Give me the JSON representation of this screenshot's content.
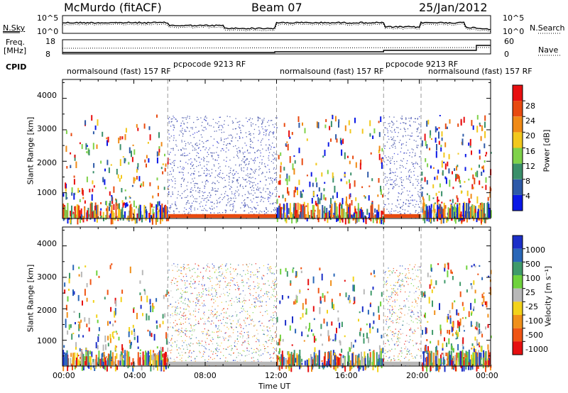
{
  "header": {
    "station": "McMurdo (fitACF)",
    "beam": "Beam 07",
    "date": "25/Jan/2012"
  },
  "noise_panel": {
    "left_label": "N.Sky",
    "right_label": "N.Search",
    "left_ticks": [
      "10^5",
      "10^0"
    ],
    "right_ticks": [
      "10^5",
      "10^0"
    ]
  },
  "freq_panel": {
    "left_label_line1": "Freq.",
    "left_label_line2": "[MHz]",
    "right_label": "Nave",
    "left_ticks": [
      "18",
      "8"
    ],
    "right_ticks": [
      "60",
      "0"
    ]
  },
  "cpid": {
    "label": "CPID",
    "segments": [
      {
        "text": "normalsound (fast)  157 RF",
        "start_h": 0,
        "end_h": 5.9
      },
      {
        "text": "pcpocode 9213 RF",
        "start_h": 5.9,
        "end_h": 12.0
      },
      {
        "text": "normalsound (fast)  157 RF",
        "start_h": 12.0,
        "end_h": 18.0
      },
      {
        "text": "pcpocode 9213 RF",
        "start_h": 18.0,
        "end_h": 20.1
      },
      {
        "text": "normalsound (fast)  157 RF",
        "start_h": 20.1,
        "end_h": 24.0
      }
    ]
  },
  "chart_data": [
    {
      "type": "heatmap",
      "panel": "power",
      "ylabel": "Slant Range [km]",
      "y_ticks": [
        "1000",
        "2000",
        "3000",
        "4000"
      ],
      "ylim": [
        180,
        4600
      ],
      "xlim_hours": [
        0,
        24
      ],
      "colorbar_label": "Power [dB]",
      "colorbar_ticks": [
        "4",
        "8",
        "12",
        "16",
        "20",
        "24",
        "28"
      ],
      "colors": [
        "#0a18e6",
        "#2e5aa8",
        "#3a8f6a",
        "#7fd24a",
        "#f2c81c",
        "#f08a16",
        "#e84a10",
        "#e80f10"
      ],
      "data_range": [
        0,
        30
      ]
    },
    {
      "type": "heatmap",
      "panel": "velocity",
      "ylabel": "Slant Range [km]",
      "y_ticks": [
        "1000",
        "2000",
        "3000",
        "4000"
      ],
      "ylim": [
        180,
        4600
      ],
      "xlim_hours": [
        0,
        24
      ],
      "xlabel": "Time UT",
      "x_ticks": [
        "00:00",
        "04:00",
        "08:00",
        "12:00",
        "16:00",
        "20:00",
        "00:00"
      ],
      "colorbar_label": "Velocity [m s⁻¹]",
      "colorbar_ticks": [
        "1000",
        "500",
        "100",
        "25",
        "-25",
        "-100",
        "-500",
        "-1000"
      ],
      "colors": [
        "#1c2fc8",
        "#2a67b8",
        "#3f9a6a",
        "#6fd23c",
        "#b8b8b8",
        "#f2d21a",
        "#f0901a",
        "#ef5514",
        "#e60f10"
      ],
      "data_range": [
        -1200,
        1200
      ]
    }
  ]
}
